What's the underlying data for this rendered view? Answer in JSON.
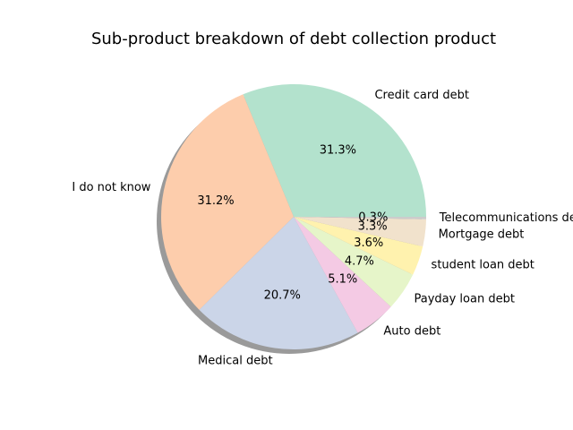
{
  "chart_data": {
    "type": "pie",
    "title": "Sub-product breakdown of debt collection product",
    "shadow": true,
    "start_angle_deg": 0,
    "direction": "counterclockwise",
    "slices": [
      {
        "label": "Credit card debt",
        "value": 31.3,
        "pct_label": "31.3%",
        "color": "#b3e2cd"
      },
      {
        "label": "I do not know",
        "value": 31.2,
        "pct_label": "31.2%",
        "color": "#fdcdac"
      },
      {
        "label": "Medical debt",
        "value": 20.7,
        "pct_label": "20.7%",
        "color": "#cbd5e8"
      },
      {
        "label": "Auto debt",
        "value": 5.1,
        "pct_label": "5.1%",
        "color": "#f4cae4"
      },
      {
        "label": "Payday loan debt",
        "value": 4.7,
        "pct_label": "4.7%",
        "color": "#e6f5c9"
      },
      {
        "label": "student loan debt",
        "value": 3.6,
        "pct_label": "3.6%",
        "color": "#fff2ae"
      },
      {
        "label": "Mortgage debt",
        "value": 3.3,
        "pct_label": "3.3%",
        "color": "#f1e2cc"
      },
      {
        "label": "Telecommunications debt",
        "value": 0.3,
        "pct_label": "0.3%",
        "color": "#cccccc"
      }
    ]
  }
}
